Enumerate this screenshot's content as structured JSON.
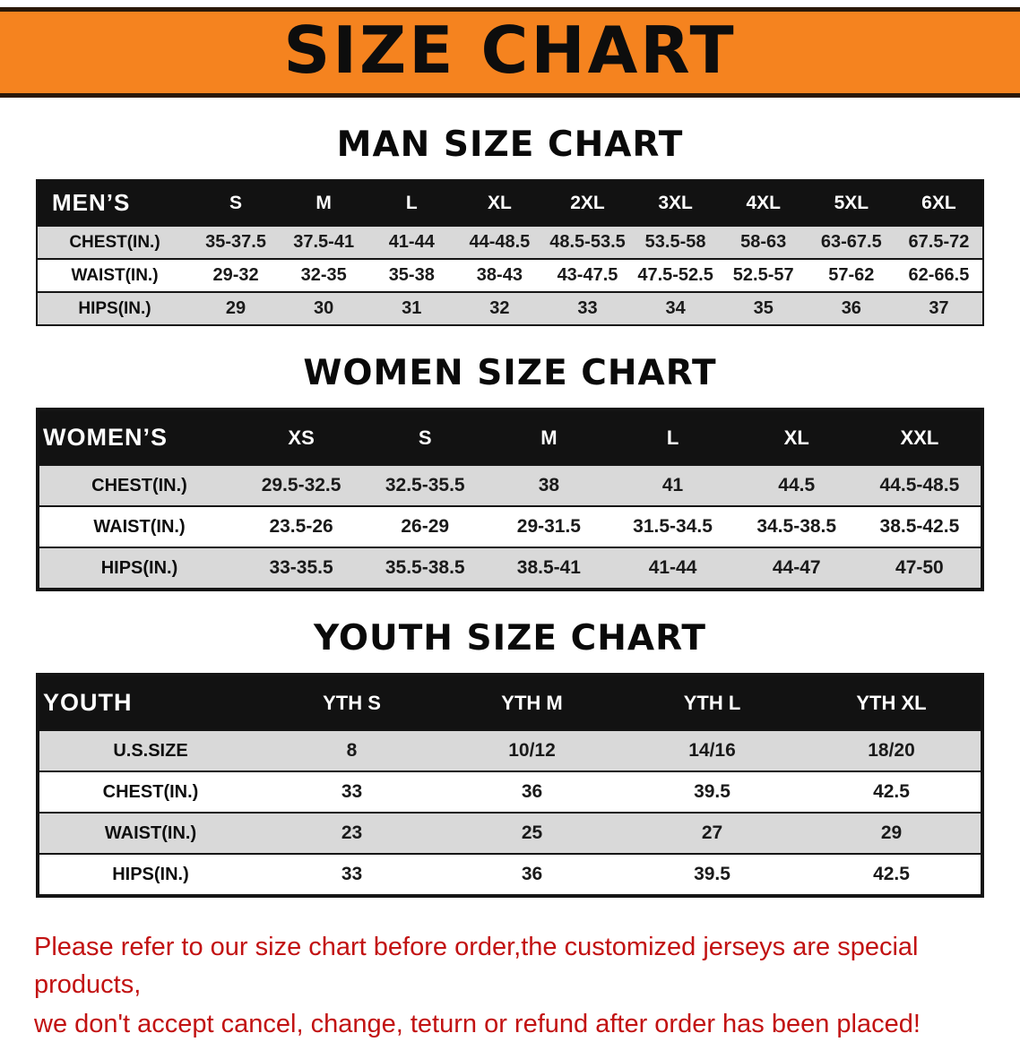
{
  "banner": {
    "title": "SIZE CHART",
    "bg_color": "#f5831f",
    "border_color": "#2a1808"
  },
  "colors": {
    "header_band": "#121212",
    "stripe_gray": "#d9d9d9",
    "notice_red": "#c21212"
  },
  "sections": {
    "men": {
      "heading": "MAN SIZE CHART",
      "table": {
        "header": [
          "MEN’S",
          "S",
          "M",
          "L",
          "XL",
          "2XL",
          "3XL",
          "4XL",
          "5XL",
          "6XL"
        ],
        "rows": [
          [
            "CHEST(IN.)",
            "35-37.5",
            "37.5-41",
            "41-44",
            "44-48.5",
            "48.5-53.5",
            "53.5-58",
            "58-63",
            "63-67.5",
            "67.5-72"
          ],
          [
            "WAIST(IN.)",
            "29-32",
            "32-35",
            "35-38",
            "38-43",
            "43-47.5",
            "47.5-52.5",
            "52.5-57",
            "57-62",
            "62-66.5"
          ],
          [
            "HIPS(IN.)",
            "29",
            "30",
            "31",
            "32",
            "33",
            "34",
            "35",
            "36",
            "37"
          ]
        ]
      }
    },
    "women": {
      "heading": "WOMEN SIZE CHART",
      "table": {
        "header": [
          "WOMEN’S",
          "XS",
          "S",
          "M",
          "L",
          "XL",
          "XXL"
        ],
        "rows": [
          [
            "CHEST(IN.)",
            "29.5-32.5",
            "32.5-35.5",
            "38",
            "41",
            "44.5",
            "44.5-48.5"
          ],
          [
            "WAIST(IN.)",
            "23.5-26",
            "26-29",
            "29-31.5",
            "31.5-34.5",
            "34.5-38.5",
            "38.5-42.5"
          ],
          [
            "HIPS(IN.)",
            "33-35.5",
            "35.5-38.5",
            "38.5-41",
            "41-44",
            "44-47",
            "47-50"
          ]
        ]
      }
    },
    "youth": {
      "heading": "YOUTH SIZE CHART",
      "table": {
        "header": [
          "YOUTH",
          "YTH S",
          "YTH M",
          "YTH L",
          "YTH XL"
        ],
        "rows": [
          [
            "U.S.SIZE",
            "8",
            "10/12",
            "14/16",
            "18/20"
          ],
          [
            "CHEST(IN.)",
            "33",
            "36",
            "39.5",
            "42.5"
          ],
          [
            "WAIST(IN.)",
            "23",
            "25",
            "27",
            "29"
          ],
          [
            "HIPS(IN.)",
            "33",
            "36",
            "39.5",
            "42.5"
          ]
        ]
      }
    }
  },
  "footer": {
    "line1": "Please refer to our size chart before order,the customized jerseys are special products,",
    "line2": "we don't accept cancel, change, teturn or refund after order has been placed!"
  }
}
